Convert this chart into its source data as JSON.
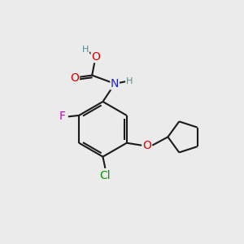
{
  "background_color": "#ebebeb",
  "bond_color": "#1a1a1a",
  "bond_width": 1.5,
  "atom_colors": {
    "C": "#1a1a1a",
    "H": "#5a8a8a",
    "O": "#e00000",
    "N": "#2020e0",
    "F": "#cc00cc",
    "Cl": "#009900"
  },
  "font_size": 9
}
